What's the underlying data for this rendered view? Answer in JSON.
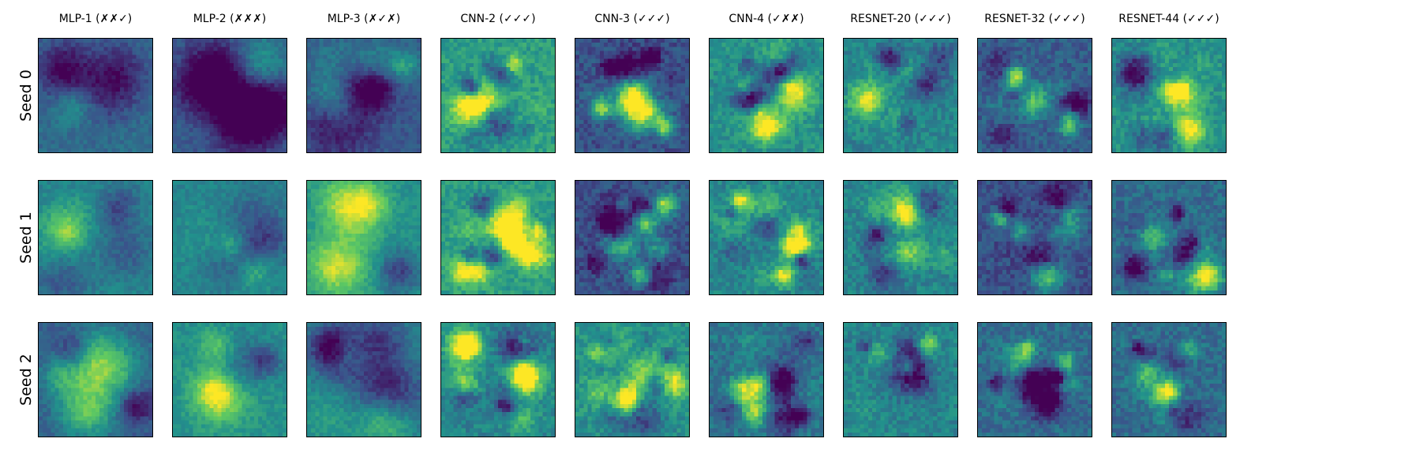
{
  "figure": {
    "columns": [
      {
        "title": "MLP-1 (✗✗✓)"
      },
      {
        "title": "MLP-2 (✗✗✗)"
      },
      {
        "title": "MLP-3 (✗✓✗)"
      },
      {
        "title": "CNN-2 (✓✓✓)"
      },
      {
        "title": "CNN-3 (✓✓✓)"
      },
      {
        "title": "CNN-4 (✓✗✗)"
      },
      {
        "title": "RESNET-20 (✓✓✓)"
      },
      {
        "title": "RESNET-32 (✓✓✓)"
      },
      {
        "title": "RESNET-44 (✓✓✓)"
      }
    ],
    "rows": [
      {
        "label": "Seed 0"
      },
      {
        "label": "Seed 1"
      },
      {
        "label": "Seed 2"
      }
    ],
    "colormap": "viridis",
    "colormap_stops": [
      "#440154",
      "#3b528b",
      "#21918c",
      "#5ec962",
      "#fde725"
    ]
  }
}
